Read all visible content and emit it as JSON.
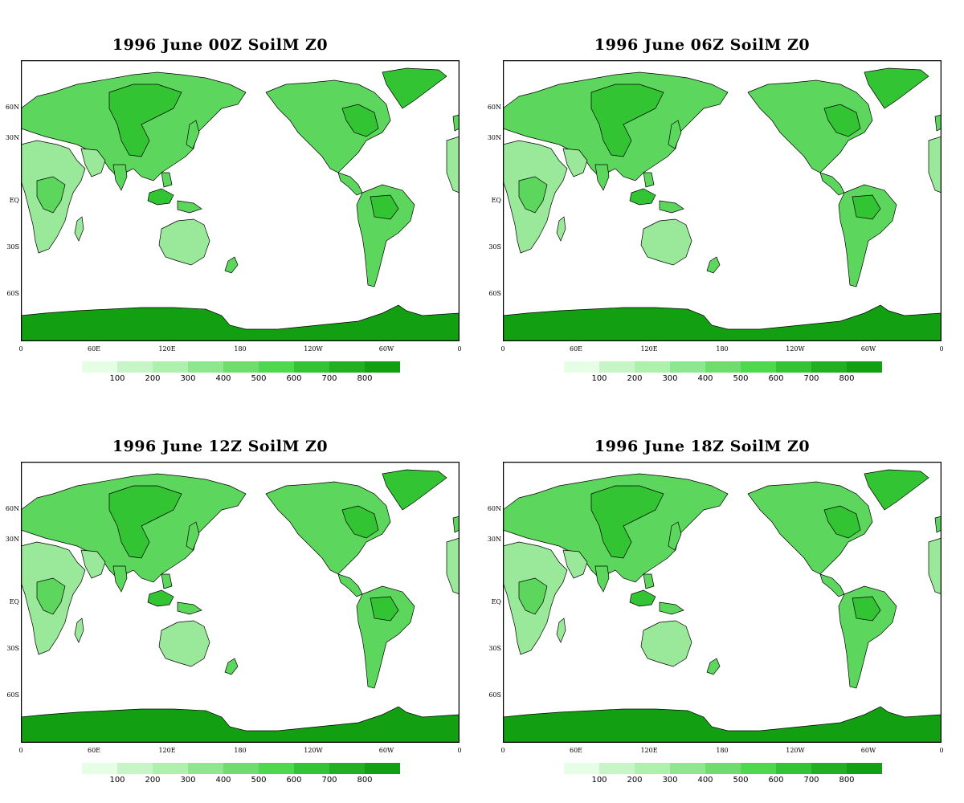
{
  "panels": [
    {
      "title": "1996 June  00Z SoilM Z0"
    },
    {
      "title": "1996  June 06Z SoilM Z0"
    },
    {
      "title": "1996  June 12Z SoilM Z0"
    },
    {
      "title": "1996  June 18Z SoilM Z0"
    }
  ],
  "lat_labels": [
    "60N",
    "30N",
    "EQ",
    "30S",
    "60S"
  ],
  "lon_labels": [
    "0",
    "60E",
    "120E",
    "180",
    "120W",
    "60W",
    "0"
  ],
  "colorbar": {
    "labels": [
      "100",
      "200",
      "300",
      "400",
      "500",
      "600",
      "700",
      "800"
    ],
    "colors": [
      "#e6fde6",
      "#c8f5c8",
      "#aef0ae",
      "#8ee68e",
      "#6edd6e",
      "#4ed84e",
      "#33c433",
      "#22b022",
      "#11a011"
    ]
  },
  "colors": {
    "ocean": "#ffffff",
    "land_light": "#9ae89a",
    "land_mid": "#5cd65c",
    "land_dark": "#33c433",
    "ice": "#129f12",
    "coast": "#000000"
  }
}
